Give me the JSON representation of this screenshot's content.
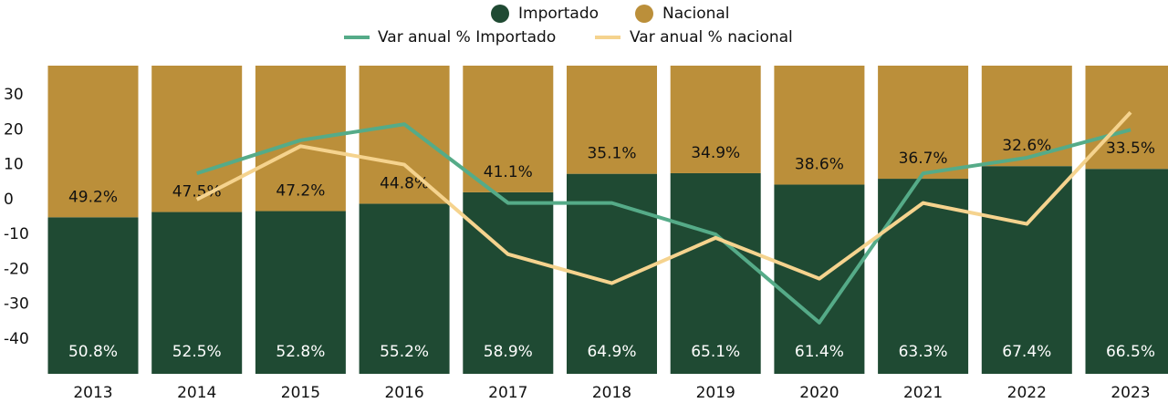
{
  "chart_data": {
    "type": "bar",
    "stacked": true,
    "categories": [
      "2013",
      "2014",
      "2015",
      "2016",
      "2017",
      "2018",
      "2019",
      "2020",
      "2021",
      "2022",
      "2023"
    ],
    "series": [
      {
        "name": "Importado",
        "color": "#1f4a33",
        "axis": "y2",
        "values": [
          50.8,
          52.5,
          52.8,
          55.2,
          58.9,
          64.9,
          65.1,
          61.4,
          63.3,
          67.4,
          66.5
        ],
        "value_labels": [
          "50.8%",
          "52.5%",
          "52.8%",
          "55.2%",
          "58.9%",
          "64.9%",
          "65.1%",
          "61.4%",
          "63.3%",
          "67.4%",
          "66.5%"
        ]
      },
      {
        "name": "Nacional",
        "color": "#bb8f3a",
        "axis": "y2",
        "values": [
          49.2,
          47.5,
          47.2,
          44.8,
          41.1,
          35.1,
          34.9,
          38.6,
          36.7,
          32.6,
          33.5
        ],
        "value_labels": [
          "49.2%",
          "47.5%",
          "47.2%",
          "44.8%",
          "41.1%",
          "35.1%",
          "34.9%",
          "38.6%",
          "36.7%",
          "32.6%",
          "33.5%"
        ]
      },
      {
        "name": "Var anual % Importado",
        "color": "#55ab88",
        "type": "line",
        "values": [
          null,
          7.5,
          17,
          21.6,
          -1,
          -1,
          -10,
          -35.3,
          7.5,
          12,
          20
        ]
      },
      {
        "name": "Var anual % nacional",
        "color": "#f5d38e",
        "type": "line",
        "values": [
          null,
          0,
          15.3,
          10,
          -15.7,
          -24,
          -11,
          -22.7,
          -1,
          -7,
          25
        ]
      }
    ],
    "ylim": [
      -50,
      38.4
    ],
    "yticks": [
      -40,
      -30,
      -20,
      -10,
      0,
      10,
      20,
      30
    ],
    "y2lim": [
      0,
      100
    ],
    "grid": false
  }
}
